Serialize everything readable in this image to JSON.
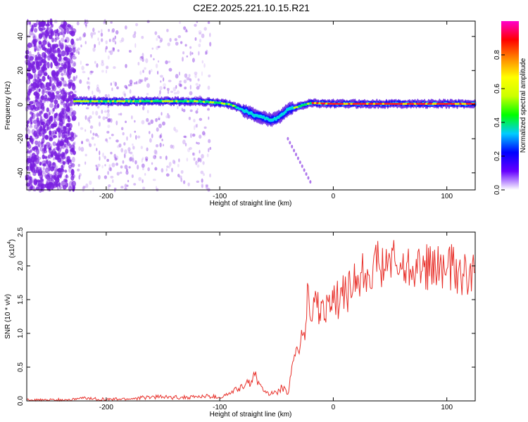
{
  "title": "C2E2.2025.221.10.15.R21",
  "colors": {
    "plot_bg": "#ffffff",
    "axis": "#000000",
    "line": "#e8302a",
    "scatter": "#7a1fe0"
  },
  "chart_data": [
    {
      "type": "heatmap",
      "name_hint": "spectrogram",
      "xlabel": "Height of straight line (km)",
      "ylabel": "Frequency (Hz)",
      "xlim": [
        -270,
        125
      ],
      "ylim": [
        -50,
        49
      ],
      "x_ticks": [
        -200,
        -100,
        0,
        100
      ],
      "x_tick_labels": [
        "-200",
        "-100",
        "0",
        "100"
      ],
      "y_ticks": [
        -40,
        -20,
        0,
        20,
        40
      ],
      "y_tick_labels": [
        "-40",
        "-20",
        "0",
        "20",
        "40"
      ],
      "grid": false,
      "ridge": {
        "x": [
          -228,
          -200,
          -180,
          -160,
          -140,
          -120,
          -100,
          -90,
          -80,
          -70,
          -60,
          -55,
          -50,
          -45,
          -40,
          -35,
          -30,
          -25,
          -20,
          0,
          50,
          125
        ],
        "y": [
          2,
          2,
          2,
          2,
          2,
          2,
          1,
          0,
          -3,
          -6,
          -8,
          -9,
          -8,
          -6,
          -3,
          -2,
          -1,
          0,
          1,
          0.5,
          0.5,
          0.5
        ]
      },
      "colorbar": {
        "label": "Normalized spectral amplitude",
        "range": [
          0,
          1
        ],
        "ticks": [
          0.0,
          0.2,
          0.4,
          0.6,
          0.8
        ],
        "tick_labels": [
          "0.0",
          "0.2",
          "0.4",
          "0.6",
          "0.8"
        ],
        "colormap": [
          "#ffffff",
          "#6600ff",
          "#0000ff",
          "#00ccff",
          "#00ff00",
          "#ccff00",
          "#ffff00",
          "#ff8800",
          "#ff0000",
          "#ff00cc"
        ]
      }
    },
    {
      "type": "line",
      "xlabel": "Height of straight line (km)",
      "ylabel": "SNR (10 * v/v)",
      "y_multiplier_label": "(x10",
      "y_multiplier_exp": "4",
      "xlim": [
        -270,
        125
      ],
      "ylim": [
        0,
        2.5
      ],
      "x_ticks": [
        -200,
        -100,
        0,
        100
      ],
      "x_tick_labels": [
        "-200",
        "-100",
        "0",
        "100"
      ],
      "y_ticks": [
        0.0,
        0.5,
        1.0,
        1.5,
        2.0,
        2.5
      ],
      "y_tick_labels": [
        "0.0",
        "0.5",
        "1.0",
        "1.5",
        "2.0",
        "2.5"
      ],
      "grid": false,
      "series": [
        {
          "color": "#e8302a",
          "x": [
            -270,
            -250,
            -230,
            -220,
            -200,
            -180,
            -160,
            -140,
            -120,
            -110,
            -100,
            -95,
            -90,
            -85,
            -80,
            -75,
            -72,
            -70,
            -65,
            -60,
            -55,
            -50,
            -45,
            -40,
            -38,
            -35,
            -32,
            -30,
            -28,
            -25,
            -22,
            -20,
            -18,
            -15,
            -12,
            -10,
            -8,
            -5,
            -2,
            0,
            3,
            5,
            8,
            10,
            12,
            15,
            18,
            20,
            25,
            30,
            35,
            40,
            45,
            50,
            55,
            60,
            70,
            80,
            90,
            100,
            105,
            110,
            115,
            120,
            125
          ],
          "y": [
            0.01,
            0.01,
            0.02,
            0.04,
            0.02,
            0.03,
            0.06,
            0.05,
            0.06,
            0.07,
            0.05,
            0.08,
            0.12,
            0.17,
            0.2,
            0.26,
            0.3,
            0.42,
            0.25,
            0.15,
            0.1,
            0.12,
            0.2,
            0.1,
            0.35,
            0.6,
            0.8,
            0.7,
            1.05,
            0.9,
            1.7,
            1.2,
            1.3,
            1.55,
            1.3,
            1.45,
            1.2,
            1.5,
            1.4,
            1.45,
            1.6,
            1.35,
            1.55,
            1.6,
            1.5,
            1.7,
            1.75,
            1.85,
            1.9,
            1.95,
            2.0,
            2.05,
            1.95,
            2.1,
            2.0,
            1.95,
            2.0,
            1.98,
            1.95,
            1.95,
            2.0,
            1.9,
            1.85,
            1.95,
            1.9
          ]
        }
      ]
    }
  ]
}
